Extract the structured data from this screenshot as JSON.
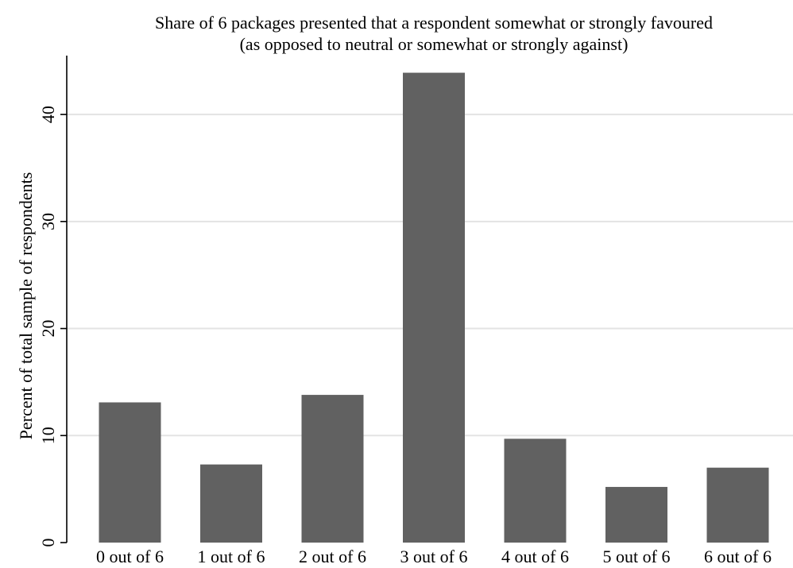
{
  "chart_data": {
    "type": "bar",
    "title": "Share of 6 packages presented that a respondent somewhat or strongly favoured",
    "subtitle": "(as opposed to neutral or somewhat or strongly against)",
    "xlabel": "",
    "ylabel": "Percent of total sample of respondents",
    "categories": [
      "0 out of 6",
      "1 out of 6",
      "2 out of 6",
      "3 out of 6",
      "4 out of 6",
      "5 out of 6",
      "6 out of 6"
    ],
    "values": [
      13.1,
      7.3,
      13.8,
      43.9,
      9.7,
      5.2,
      7.0
    ],
    "ylim": [
      0,
      45.5
    ],
    "yticks": [
      0,
      10,
      20,
      30,
      40
    ],
    "ytick_labels": [
      "0",
      "10",
      "20",
      "30",
      "40"
    ],
    "grid": true,
    "legend": "none",
    "colors": {
      "bar": "#616161",
      "grid": "#e3e3e3",
      "axis": "#000000",
      "background": "#ffffff"
    }
  }
}
